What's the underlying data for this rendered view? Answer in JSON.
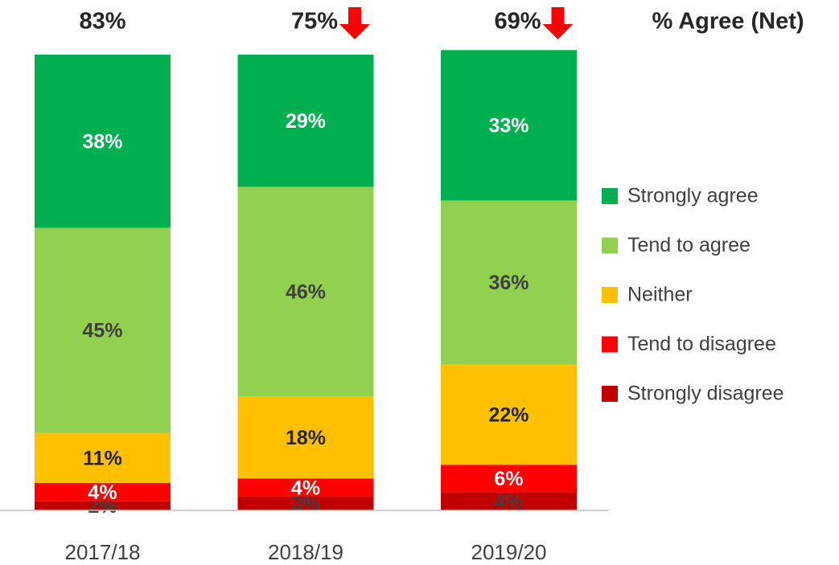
{
  "chart_data": {
    "type": "stacked_bar",
    "title": "% Agree (Net)",
    "categories": [
      "2017/18",
      "2018/19",
      "2019/20"
    ],
    "series": [
      {
        "name": "Strongly disagree",
        "color": "#c00000",
        "label_color": "#404040",
        "values": [
          2,
          3,
          4
        ],
        "value_labels": [
          "2%",
          "3%",
          "4%"
        ]
      },
      {
        "name": "Tend to disagree",
        "color": "#ff0000",
        "label_color": "#ffffff",
        "values": [
          4,
          4,
          6
        ],
        "value_labels": [
          "4%",
          "4%",
          "6%"
        ]
      },
      {
        "name": "Neither",
        "color": "#ffc000",
        "label_color": "#262626",
        "values": [
          11,
          18,
          22
        ],
        "value_labels": [
          "11%",
          "18%",
          "22%"
        ]
      },
      {
        "name": "Tend to agree",
        "color": "#92d050",
        "label_color": "#404040",
        "values": [
          45,
          46,
          36
        ],
        "value_labels": [
          "45%",
          "46%",
          "36%"
        ]
      },
      {
        "name": "Strongly agree",
        "color": "#00b050",
        "label_color": "#ffffff",
        "values": [
          38,
          29,
          33
        ],
        "value_labels": [
          "38%",
          "29%",
          "33%"
        ]
      }
    ],
    "net": {
      "values": [
        83,
        75,
        69
      ],
      "value_labels": [
        "83%",
        "75%",
        "69%"
      ],
      "change": [
        null,
        "down",
        "down"
      ],
      "arrow_color": "#ff0000"
    },
    "ylim": [
      0,
      100
    ]
  }
}
